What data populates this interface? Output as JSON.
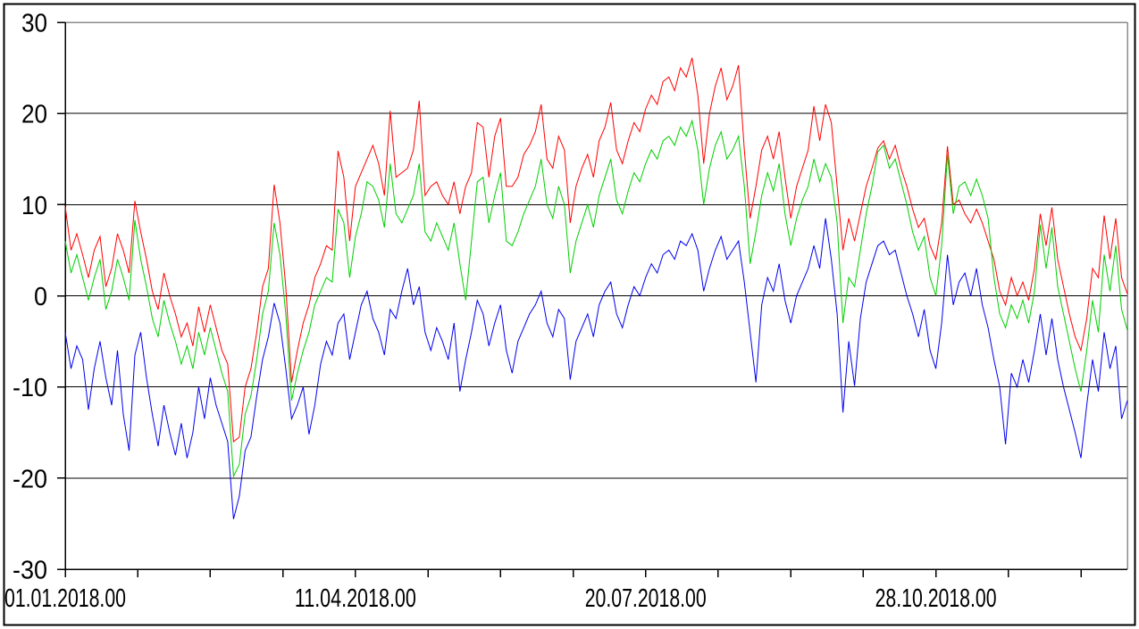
{
  "page": {
    "background": "#ffffff",
    "border_color": "#000000"
  },
  "chart_data": {
    "type": "line",
    "title": "",
    "legend": "none",
    "grid": "horizontal",
    "background": "#ffffff",
    "grid_color": "#000000",
    "axis_color": "#000000",
    "plot_frame_color": "#8c8c8c",
    "text_color": "#000000",
    "x_axis": {
      "kind": "time-days",
      "range_days": [
        0,
        366
      ],
      "minor_tick_step_days": 25,
      "major_ticks": [
        {
          "day": 0,
          "label": "01.01.2018.00"
        },
        {
          "day": 100,
          "label": "11.04.2018.00"
        },
        {
          "day": 200,
          "label": "20.07.2018.00"
        },
        {
          "day": 300,
          "label": "28.10.2018.00"
        }
      ]
    },
    "y_axis": {
      "range": [
        -30,
        30
      ],
      "tick_step": 10,
      "tick_labels": [
        "30",
        "20",
        "10",
        "0",
        "-10",
        "-20",
        "-30"
      ]
    },
    "series": [
      {
        "name": "red-series",
        "color": "#ff0000",
        "day_start": 0,
        "day_step": 2,
        "values": [
          9.8,
          5,
          6.8,
          4.5,
          2,
          5,
          6.5,
          1,
          3,
          6.8,
          5,
          2.5,
          10.4,
          7,
          4,
          0.5,
          -1.5,
          2.5,
          0,
          -2,
          -4.5,
          -3,
          -5.5,
          -1.2,
          -4,
          -1,
          -3.5,
          -6,
          -7.5,
          -16,
          -15.5,
          -10,
          -8,
          -4,
          1,
          3,
          12.2,
          8,
          1,
          -9.5,
          -6,
          -3,
          -1,
          2,
          3.5,
          5.5,
          5,
          15.9,
          13,
          6,
          12,
          13.5,
          15,
          16.5,
          14.5,
          11,
          20.3,
          13,
          13.5,
          14,
          16,
          21.4,
          11,
          12,
          12.5,
          11,
          10,
          12.5,
          9,
          12,
          13.5,
          19,
          18.5,
          13,
          17.5,
          19.5,
          12,
          12,
          13,
          15.5,
          16.5,
          18,
          21,
          15,
          14,
          17.5,
          16,
          8,
          12,
          14,
          15.5,
          13,
          17,
          18.5,
          21.2,
          16,
          14.5,
          17,
          19,
          18,
          20.5,
          22,
          21,
          23.5,
          24,
          22.5,
          25,
          24,
          26.1,
          22,
          14.5,
          20,
          23,
          25,
          21.5,
          23,
          25.3,
          16,
          8.5,
          12,
          16,
          17.5,
          15,
          18,
          13,
          8.5,
          12,
          14,
          16,
          20.8,
          17,
          21,
          19,
          12,
          5,
          8.5,
          6,
          9,
          12,
          14,
          16.2,
          17,
          15,
          16.5,
          14,
          12,
          9.5,
          7.5,
          8.5,
          5.5,
          4,
          8,
          16.4,
          10,
          10.5,
          9,
          8,
          9.5,
          8,
          6,
          4,
          0.5,
          -1,
          2,
          0,
          1.5,
          -0.5,
          3,
          9,
          5.5,
          9.7,
          4,
          1,
          -2,
          -4.5,
          -6,
          -2.5,
          3,
          2,
          8.8,
          4,
          8.5,
          2,
          0.2
        ]
      },
      {
        "name": "green-series",
        "color": "#00cf00",
        "day_start": 0,
        "day_step": 2,
        "values": [
          6,
          2.5,
          4.5,
          2,
          -0.5,
          2,
          4,
          -1.5,
          0.5,
          4,
          2,
          -0.5,
          8.3,
          4,
          1,
          -2.5,
          -4.5,
          -0.5,
          -3,
          -5,
          -7.5,
          -5.5,
          -8,
          -4,
          -6.5,
          -3.5,
          -6,
          -8.5,
          -10.5,
          -19.8,
          -18.5,
          -13,
          -11,
          -7,
          -2,
          0.5,
          8,
          4.5,
          -2,
          -11.5,
          -8.5,
          -6,
          -4,
          -1,
          0.5,
          2,
          1.5,
          9.5,
          8,
          2,
          6.5,
          9,
          12.5,
          12,
          10.5,
          7.5,
          14.5,
          9,
          8,
          9.5,
          11,
          14.5,
          7,
          6,
          8,
          6.5,
          5,
          8,
          3.5,
          -0.5,
          6,
          12.5,
          13,
          8,
          11,
          13.5,
          6,
          5.5,
          7,
          9,
          10.5,
          12,
          15,
          10,
          8.5,
          12,
          10,
          2.5,
          6,
          8,
          10,
          7.5,
          11,
          13,
          15,
          10.5,
          9,
          11.5,
          13.5,
          12.5,
          14.5,
          16,
          15,
          17,
          17.5,
          16.5,
          18.5,
          17.5,
          19.2,
          16,
          10,
          14,
          16.5,
          18,
          15,
          16,
          17.5,
          12,
          3.5,
          7,
          11,
          13.5,
          11.5,
          14.5,
          9,
          5.5,
          8.5,
          10.5,
          12,
          15,
          12.5,
          14.5,
          13,
          8,
          -3,
          2,
          1,
          5,
          9,
          12,
          15.8,
          16.5,
          14,
          15,
          12.5,
          10,
          7,
          5,
          6.5,
          2,
          0,
          5.5,
          15.5,
          9,
          12,
          12.5,
          11,
          12.8,
          11,
          8.5,
          2,
          -2,
          -3.5,
          -1,
          -2.5,
          -0.5,
          -3,
          0.5,
          7.8,
          3,
          7.5,
          1,
          -2,
          -5,
          -8,
          -10.5,
          -6,
          -0.5,
          -4,
          4.5,
          0.5,
          5.5,
          -1.5,
          -3.8
        ]
      },
      {
        "name": "blue-series",
        "color": "#0000ee",
        "day_start": 0,
        "day_step": 2,
        "values": [
          -4,
          -8,
          -5.5,
          -7,
          -12.5,
          -8,
          -5,
          -9,
          -12,
          -6,
          -13,
          -17,
          -6.5,
          -4,
          -9,
          -13,
          -16.5,
          -12,
          -15,
          -17.5,
          -14,
          -17.8,
          -15,
          -10,
          -13.5,
          -9,
          -12,
          -14,
          -16,
          -24.5,
          -22,
          -17,
          -15.5,
          -11,
          -7,
          -4.5,
          -0.8,
          -3,
          -8,
          -13.5,
          -12,
          -10,
          -15.2,
          -12,
          -7.5,
          -5,
          -6.5,
          -3,
          -2,
          -7,
          -4,
          -1,
          0.5,
          -2.5,
          -4,
          -6.5,
          -1.5,
          -2.5,
          0.5,
          3,
          -1,
          1,
          -4,
          -6,
          -3.5,
          -5,
          -7,
          -3,
          -10.5,
          -7,
          -4,
          -0.5,
          -2,
          -5.5,
          -3,
          -1,
          -6,
          -8.5,
          -5,
          -3.5,
          -2,
          -1,
          0.5,
          -3,
          -4.5,
          -1.5,
          -2.5,
          -9.2,
          -5,
          -3.5,
          -2,
          -4.5,
          -1,
          0.5,
          1.5,
          -2,
          -3.5,
          -1,
          1,
          0,
          2,
          3.5,
          2.5,
          4.5,
          5,
          4,
          6,
          5.5,
          6.8,
          5,
          0.5,
          3,
          5,
          6.5,
          4,
          5,
          6,
          1.5,
          -4,
          -9.5,
          -1,
          2,
          0.5,
          3.5,
          -0.5,
          -3,
          0,
          1.5,
          3,
          5.5,
          3,
          8.5,
          4,
          -2,
          -12.8,
          -5,
          -9.9,
          -2.5,
          1.5,
          3.5,
          5.5,
          6,
          4.5,
          5,
          2.5,
          0,
          -2,
          -4.5,
          -1.5,
          -6,
          -8,
          -3,
          4.5,
          -1,
          1.5,
          2.5,
          0,
          3,
          -1,
          -3.5,
          -7,
          -10,
          -16.3,
          -8.5,
          -10,
          -7,
          -9.5,
          -6,
          -2,
          -6.5,
          -2.5,
          -7,
          -10,
          -12.5,
          -15,
          -17.8,
          -12,
          -7,
          -10.5,
          -4,
          -8,
          -5.5,
          -13.5,
          -11.5
        ]
      }
    ]
  }
}
